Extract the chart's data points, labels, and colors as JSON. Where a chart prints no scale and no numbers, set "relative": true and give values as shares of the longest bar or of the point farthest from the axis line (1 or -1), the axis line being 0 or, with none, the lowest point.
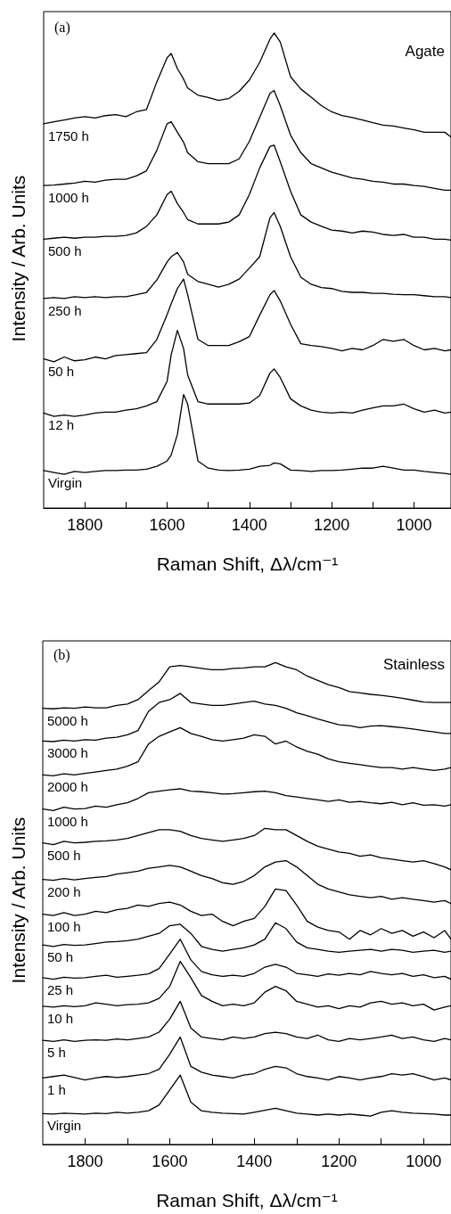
{
  "chart_data": [
    {
      "type": "line",
      "title": "Agate",
      "annotations": [
        "(a)"
      ],
      "xlabel": "Raman Shift, Δλ/cm⁻¹",
      "ylabel": "Intensity / Arb. Units",
      "relative": true,
      "line_style": "solid",
      "xlim": [
        1900,
        910
      ],
      "xticks": [
        {
          "value": 1800,
          "label": "1800"
        },
        {
          "value": 1700,
          "label": null
        },
        {
          "value": 1600,
          "label": "1600"
        },
        {
          "value": 1500,
          "label": null
        },
        {
          "value": 1400,
          "label": "1400"
        },
        {
          "value": 1300,
          "label": null
        },
        {
          "value": 1200,
          "label": "1200"
        },
        {
          "value": 1100,
          "label": null
        },
        {
          "value": 1000,
          "label": "1000"
        }
      ],
      "x": [
        1900,
        1875,
        1850,
        1825,
        1800,
        1775,
        1750,
        1725,
        1700,
        1675,
        1650,
        1625,
        1600,
        1590,
        1575,
        1560,
        1550,
        1525,
        1500,
        1475,
        1450,
        1425,
        1400,
        1375,
        1350,
        1340,
        1325,
        1300,
        1275,
        1250,
        1225,
        1200,
        1175,
        1150,
        1125,
        1100,
        1075,
        1050,
        1025,
        1000,
        975,
        950,
        925,
        910
      ],
      "series": [
        {
          "name": "1750 h",
          "color": "#000000",
          "values": [
            0.809,
            0.813,
            0.817,
            0.821,
            0.824,
            0.821,
            0.826,
            0.828,
            0.824,
            0.834,
            0.839,
            0.897,
            0.948,
            0.957,
            0.925,
            0.903,
            0.884,
            0.869,
            0.864,
            0.858,
            0.862,
            0.877,
            0.901,
            0.938,
            0.987,
            1,
            0.981,
            0.908,
            0.882,
            0.865,
            0.847,
            0.834,
            0.826,
            0.822,
            0.817,
            0.811,
            0.806,
            0.804,
            0.8,
            0.796,
            0.791,
            0.791,
            0.791,
            0.781
          ]
        },
        {
          "name": "1000 h",
          "color": "#000000",
          "values": [
            0.679,
            0.68,
            0.682,
            0.684,
            0.688,
            0.686,
            0.69,
            0.692,
            0.692,
            0.699,
            0.71,
            0.753,
            0.809,
            0.813,
            0.791,
            0.77,
            0.748,
            0.729,
            0.725,
            0.725,
            0.725,
            0.735,
            0.772,
            0.822,
            0.873,
            0.879,
            0.847,
            0.785,
            0.748,
            0.725,
            0.716,
            0.707,
            0.701,
            0.695,
            0.692,
            0.688,
            0.686,
            0.682,
            0.682,
            0.679,
            0.677,
            0.673,
            0.669,
            0.669
          ]
        },
        {
          "name": "500 h",
          "color": "#000000",
          "values": [
            0.566,
            0.568,
            0.57,
            0.568,
            0.57,
            0.57,
            0.572,
            0.572,
            0.574,
            0.579,
            0.593,
            0.617,
            0.66,
            0.667,
            0.641,
            0.622,
            0.607,
            0.598,
            0.598,
            0.598,
            0.602,
            0.617,
            0.66,
            0.716,
            0.761,
            0.764,
            0.729,
            0.667,
            0.617,
            0.602,
            0.593,
            0.585,
            0.583,
            0.579,
            0.583,
            0.581,
            0.576,
            0.574,
            0.576,
            0.57,
            0.57,
            0.566,
            0.566,
            0.564
          ]
        },
        {
          "name": "250 h",
          "color": "#000000",
          "values": [
            0.441,
            0.443,
            0.441,
            0.445,
            0.443,
            0.445,
            0.443,
            0.445,
            0.445,
            0.449,
            0.454,
            0.48,
            0.518,
            0.529,
            0.538,
            0.518,
            0.492,
            0.477,
            0.471,
            0.465,
            0.471,
            0.482,
            0.505,
            0.529,
            0.611,
            0.622,
            0.593,
            0.529,
            0.486,
            0.471,
            0.464,
            0.462,
            0.456,
            0.454,
            0.454,
            0.452,
            0.452,
            0.45,
            0.449,
            0.449,
            0.447,
            0.445,
            0.445,
            0.443
          ]
        },
        {
          "name": "50 h",
          "color": "#000000",
          "values": [
            0.314,
            0.308,
            0.318,
            0.31,
            0.312,
            0.318,
            0.314,
            0.321,
            0.323,
            0.325,
            0.327,
            0.355,
            0.407,
            0.43,
            0.462,
            0.482,
            0.449,
            0.355,
            0.342,
            0.342,
            0.342,
            0.35,
            0.361,
            0.406,
            0.449,
            0.458,
            0.436,
            0.387,
            0.346,
            0.342,
            0.34,
            0.336,
            0.331,
            0.336,
            0.333,
            0.342,
            0.355,
            0.351,
            0.355,
            0.342,
            0.333,
            0.336,
            0.331,
            0.333
          ]
        },
        {
          "name": "12 h",
          "color": "#000000",
          "values": [
            0.2,
            0.193,
            0.196,
            0.193,
            0.196,
            0.2,
            0.202,
            0.202,
            0.206,
            0.209,
            0.215,
            0.224,
            0.267,
            0.323,
            0.374,
            0.336,
            0.28,
            0.224,
            0.219,
            0.219,
            0.219,
            0.219,
            0.221,
            0.237,
            0.284,
            0.293,
            0.275,
            0.23,
            0.215,
            0.206,
            0.202,
            0.2,
            0.202,
            0.2,
            0.206,
            0.211,
            0.215,
            0.215,
            0.219,
            0.209,
            0.202,
            0.206,
            0.2,
            0.202
          ]
        },
        {
          "name": "Virgin",
          "color": "#000000",
          "values": [
            0.079,
            0.075,
            0.071,
            0.077,
            0.075,
            0.077,
            0.079,
            0.079,
            0.08,
            0.08,
            0.082,
            0.088,
            0.099,
            0.112,
            0.155,
            0.239,
            0.219,
            0.099,
            0.084,
            0.08,
            0.079,
            0.08,
            0.082,
            0.088,
            0.09,
            0.095,
            0.093,
            0.08,
            0.079,
            0.077,
            0.079,
            0.079,
            0.08,
            0.082,
            0.084,
            0.084,
            0.088,
            0.084,
            0.08,
            0.08,
            0.077,
            0.075,
            0.073,
            0.071
          ]
        }
      ]
    },
    {
      "type": "line",
      "title": "Stainless",
      "annotations": [
        "(b)"
      ],
      "xlabel": "Raman Shift, Δλ/cm⁻¹",
      "ylabel": "Intensity / Arb. Units",
      "relative": true,
      "line_style": "solid",
      "xlim": [
        1900,
        935
      ],
      "xticks": [
        {
          "value": 1800,
          "label": "1800"
        },
        {
          "value": 1700,
          "label": null
        },
        {
          "value": 1600,
          "label": "1600"
        },
        {
          "value": 1500,
          "label": null
        },
        {
          "value": 1400,
          "label": "1400"
        },
        {
          "value": 1300,
          "label": null
        },
        {
          "value": 1200,
          "label": "1200"
        },
        {
          "value": 1100,
          "label": null
        },
        {
          "value": 1000,
          "label": "1000"
        }
      ],
      "x": [
        1900,
        1875,
        1850,
        1825,
        1800,
        1775,
        1750,
        1725,
        1700,
        1675,
        1650,
        1625,
        1600,
        1575,
        1550,
        1525,
        1500,
        1475,
        1450,
        1425,
        1400,
        1375,
        1350,
        1325,
        1300,
        1275,
        1250,
        1225,
        1200,
        1175,
        1150,
        1125,
        1100,
        1075,
        1050,
        1025,
        1000,
        975,
        950,
        935
      ],
      "series": [
        {
          "name": "5000 h",
          "color": "#000000",
          "values": [
            0.905,
            0.904,
            0.906,
            0.905,
            0.908,
            0.906,
            0.906,
            0.911,
            0.914,
            0.923,
            0.942,
            0.96,
            0.991,
            0.994,
            0.991,
            0.988,
            0.985,
            0.985,
            0.988,
            0.989,
            0.991,
            0.991,
            1,
            0.991,
            0.985,
            0.972,
            0.963,
            0.954,
            0.948,
            0.94,
            0.937,
            0.934,
            0.932,
            0.929,
            0.926,
            0.922,
            0.918,
            0.917,
            0.917,
            0.917
          ]
        },
        {
          "name": "3000 h",
          "color": "#000000",
          "values": [
            0.837,
            0.836,
            0.839,
            0.837,
            0.84,
            0.839,
            0.843,
            0.845,
            0.85,
            0.859,
            0.899,
            0.917,
            0.923,
            0.936,
            0.917,
            0.914,
            0.911,
            0.911,
            0.914,
            0.917,
            0.92,
            0.914,
            0.911,
            0.905,
            0.896,
            0.89,
            0.883,
            0.877,
            0.871,
            0.869,
            0.865,
            0.868,
            0.869,
            0.867,
            0.865,
            0.862,
            0.859,
            0.856,
            0.853,
            0.853
          ]
        },
        {
          "name": "2000 h",
          "color": "#000000",
          "values": [
            0.767,
            0.765,
            0.769,
            0.767,
            0.77,
            0.773,
            0.776,
            0.779,
            0.785,
            0.794,
            0.831,
            0.847,
            0.856,
            0.865,
            0.853,
            0.847,
            0.84,
            0.837,
            0.84,
            0.843,
            0.85,
            0.847,
            0.831,
            0.837,
            0.825,
            0.816,
            0.81,
            0.8,
            0.794,
            0.791,
            0.788,
            0.785,
            0.782,
            0.782,
            0.779,
            0.782,
            0.779,
            0.776,
            0.779,
            0.782
          ]
        },
        {
          "name": "1000 h",
          "color": "#000000",
          "values": [
            0.696,
            0.693,
            0.7,
            0.696,
            0.697,
            0.702,
            0.7,
            0.705,
            0.709,
            0.718,
            0.73,
            0.733,
            0.736,
            0.738,
            0.733,
            0.732,
            0.73,
            0.727,
            0.728,
            0.73,
            0.732,
            0.733,
            0.73,
            0.724,
            0.721,
            0.718,
            0.715,
            0.712,
            0.715,
            0.71,
            0.712,
            0.709,
            0.707,
            0.71,
            0.705,
            0.709,
            0.704,
            0.705,
            0.702,
            0.705
          ]
        },
        {
          "name": "500 h",
          "color": "#000000",
          "values": [
            0.626,
            0.622,
            0.629,
            0.626,
            0.627,
            0.629,
            0.63,
            0.632,
            0.635,
            0.641,
            0.647,
            0.653,
            0.653,
            0.65,
            0.641,
            0.635,
            0.632,
            0.629,
            0.632,
            0.635,
            0.641,
            0.656,
            0.653,
            0.653,
            0.641,
            0.629,
            0.619,
            0.613,
            0.607,
            0.604,
            0.598,
            0.601,
            0.595,
            0.592,
            0.589,
            0.586,
            0.589,
            0.583,
            0.576,
            0.57
          ]
        },
        {
          "name": "200 h",
          "color": "#000000",
          "values": [
            0.55,
            0.548,
            0.552,
            0.549,
            0.552,
            0.554,
            0.556,
            0.561,
            0.564,
            0.567,
            0.573,
            0.576,
            0.579,
            0.576,
            0.567,
            0.558,
            0.552,
            0.543,
            0.54,
            0.546,
            0.558,
            0.576,
            0.586,
            0.589,
            0.576,
            0.558,
            0.54,
            0.53,
            0.524,
            0.518,
            0.515,
            0.512,
            0.515,
            0.509,
            0.512,
            0.509,
            0.506,
            0.503,
            0.506,
            0.5
          ]
        },
        {
          "name": "100 h",
          "color": "#000000",
          "values": [
            0.478,
            0.475,
            0.481,
            0.475,
            0.478,
            0.484,
            0.481,
            0.487,
            0.49,
            0.497,
            0.494,
            0.5,
            0.503,
            0.497,
            0.484,
            0.475,
            0.478,
            0.463,
            0.454,
            0.463,
            0.469,
            0.494,
            0.53,
            0.527,
            0.497,
            0.463,
            0.451,
            0.444,
            0.441,
            0.426,
            0.444,
            0.435,
            0.448,
            0.438,
            0.444,
            0.432,
            0.441,
            0.429,
            0.444,
            0.426
          ]
        },
        {
          "name": "50 h",
          "color": "#000000",
          "values": [
            0.414,
            0.411,
            0.415,
            0.413,
            0.414,
            0.417,
            0.42,
            0.421,
            0.423,
            0.426,
            0.432,
            0.438,
            0.454,
            0.457,
            0.438,
            0.411,
            0.405,
            0.401,
            0.405,
            0.408,
            0.414,
            0.426,
            0.46,
            0.448,
            0.42,
            0.408,
            0.405,
            0.401,
            0.399,
            0.401,
            0.403,
            0.405,
            0.401,
            0.405,
            0.403,
            0.399,
            0.401,
            0.403,
            0.399,
            0.401
          ]
        },
        {
          "name": "25 h",
          "color": "#000000",
          "values": [
            0.346,
            0.343,
            0.347,
            0.345,
            0.346,
            0.349,
            0.351,
            0.347,
            0.349,
            0.351,
            0.354,
            0.365,
            0.395,
            0.426,
            0.383,
            0.359,
            0.352,
            0.349,
            0.351,
            0.349,
            0.355,
            0.368,
            0.374,
            0.368,
            0.355,
            0.352,
            0.349,
            0.354,
            0.351,
            0.355,
            0.352,
            0.359,
            0.355,
            0.352,
            0.355,
            0.349,
            0.352,
            0.346,
            0.349,
            0.343
          ]
        },
        {
          "name": "10 h",
          "color": "#000000",
          "values": [
            0.287,
            0.285,
            0.288,
            0.286,
            0.288,
            0.294,
            0.291,
            0.288,
            0.29,
            0.291,
            0.294,
            0.303,
            0.328,
            0.38,
            0.346,
            0.309,
            0.297,
            0.288,
            0.291,
            0.288,
            0.294,
            0.316,
            0.328,
            0.319,
            0.297,
            0.291,
            0.285,
            0.288,
            0.282,
            0.288,
            0.285,
            0.294,
            0.297,
            0.291,
            0.294,
            0.288,
            0.291,
            0.279,
            0.285,
            0.288
          ]
        },
        {
          "name": "5 h",
          "color": "#000000",
          "values": [
            0.216,
            0.214,
            0.217,
            0.214,
            0.216,
            0.217,
            0.216,
            0.219,
            0.217,
            0.22,
            0.223,
            0.233,
            0.26,
            0.297,
            0.242,
            0.223,
            0.22,
            0.217,
            0.223,
            0.22,
            0.223,
            0.23,
            0.233,
            0.23,
            0.223,
            0.22,
            0.227,
            0.217,
            0.214,
            0.22,
            0.217,
            0.22,
            0.223,
            0.227,
            0.22,
            0.223,
            0.217,
            0.214,
            0.22,
            0.217
          ]
        },
        {
          "name": "1 h",
          "color": "#000000",
          "values": [
            0.138,
            0.141,
            0.144,
            0.139,
            0.134,
            0.138,
            0.141,
            0.139,
            0.141,
            0.144,
            0.147,
            0.156,
            0.187,
            0.223,
            0.162,
            0.15,
            0.144,
            0.141,
            0.138,
            0.144,
            0.147,
            0.156,
            0.162,
            0.159,
            0.147,
            0.141,
            0.138,
            0.134,
            0.141,
            0.138,
            0.134,
            0.138,
            0.141,
            0.147,
            0.144,
            0.147,
            0.141,
            0.134,
            0.138,
            0.134
          ]
        },
        {
          "name": "Virgin",
          "color": "#000000",
          "values": [
            0.064,
            0.063,
            0.065,
            0.064,
            0.063,
            0.065,
            0.064,
            0.067,
            0.065,
            0.067,
            0.07,
            0.082,
            0.113,
            0.144,
            0.088,
            0.07,
            0.067,
            0.065,
            0.064,
            0.063,
            0.067,
            0.071,
            0.075,
            0.07,
            0.065,
            0.063,
            0.061,
            0.063,
            0.061,
            0.063,
            0.061,
            0.059,
            0.067,
            0.07,
            0.067,
            0.065,
            0.064,
            0.063,
            0.061,
            0.061
          ]
        }
      ]
    }
  ]
}
